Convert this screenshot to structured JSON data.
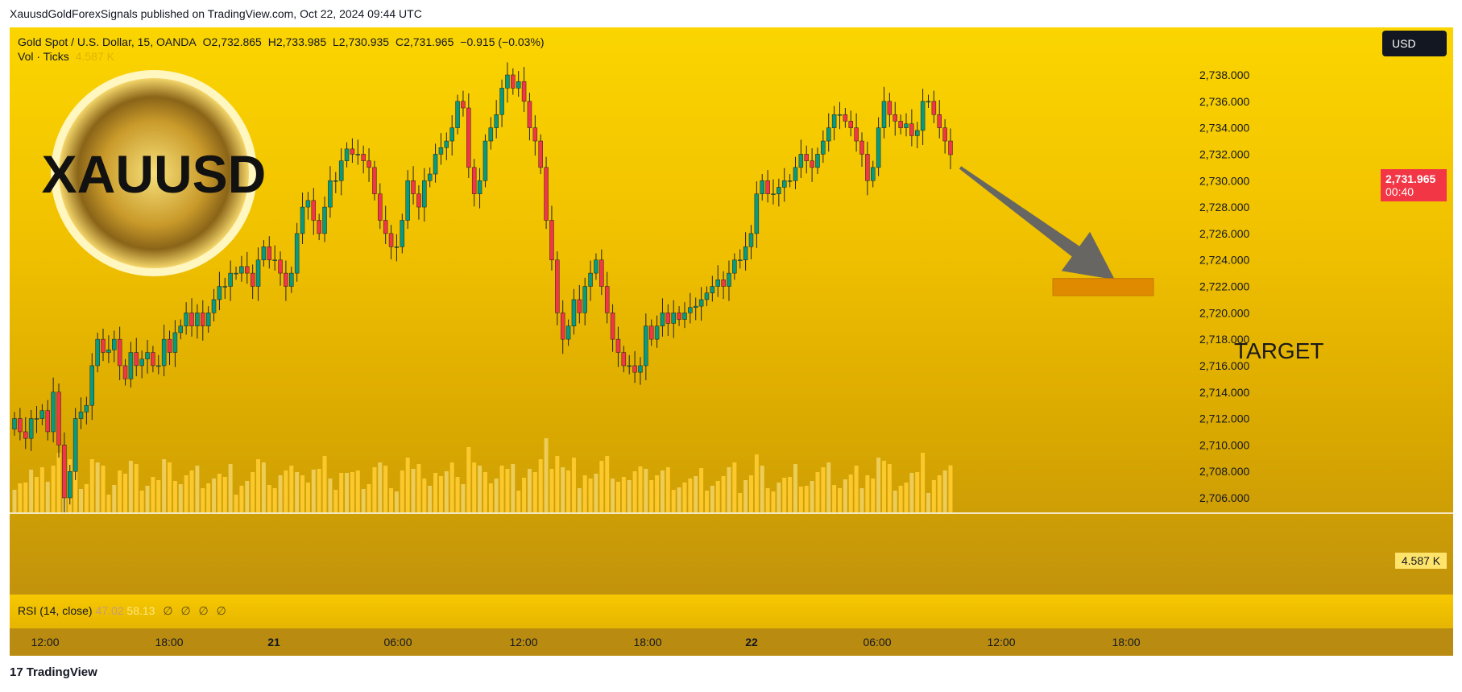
{
  "publisher_line": "XauusdGoldForexSignals published on TradingView.com, Oct 22, 2024 09:44 UTC",
  "legend": {
    "symbol": "Gold Spot / U.S. Dollar, 15, OANDA",
    "open": "O2,732.865",
    "high": "H2,733.985",
    "low": "L2,730.935",
    "close": "C2,731.965",
    "change": "−0.915 (−0.03%)",
    "vol_label": "Vol · Ticks",
    "vol_value": "4.587 K"
  },
  "currency_button": "USD",
  "logo_text": "XAUUSD",
  "last_price": {
    "price": "2,731.965",
    "countdown": "00:40",
    "color": "#f23645"
  },
  "volume_tag": "4.587 K",
  "target_label": "TARGET",
  "rsi": {
    "label": "RSI (14, close)",
    "v1": "47.02",
    "v2": "58.13",
    "extra": [
      "∅",
      "∅",
      "∅",
      "∅"
    ]
  },
  "branding": "TradingView",
  "colors": {
    "up": "#089981",
    "down": "#f23645",
    "volume": "#ffcc33",
    "arrow": "#5b5e6a",
    "target": "#e08a00"
  },
  "chart_data": {
    "type": "candlestick",
    "symbol": "XAUUSD",
    "timeframe": "15",
    "y_axis": {
      "min": 2705,
      "max": 2740,
      "ticks": [
        "2,706.000",
        "2,708.000",
        "2,710.000",
        "2,712.000",
        "2,714.000",
        "2,716.000",
        "2,718.000",
        "2,720.000",
        "2,722.000",
        "2,724.000",
        "2,726.000",
        "2,728.000",
        "2,730.000",
        "2,732.000",
        "2,734.000",
        "2,736.000",
        "2,738.000"
      ]
    },
    "x_axis": {
      "ticks": [
        "12:00",
        "18:00",
        "21",
        "06:00",
        "12:00",
        "18:00",
        "22",
        "06:00",
        "12:00",
        "18:00"
      ]
    },
    "close_series": [
      2712,
      2711,
      2710.5,
      2712,
      2712,
      2712.6,
      2711,
      2714,
      2710,
      2706,
      2708,
      2712,
      2712.5,
      2713,
      2716,
      2718,
      2717,
      2717.2,
      2718,
      2716,
      2715,
      2717,
      2716,
      2716.5,
      2717,
      2716,
      2716,
      2718,
      2717,
      2718.5,
      2719,
      2720,
      2719,
      2720,
      2719,
      2720,
      2721,
      2722,
      2722,
      2723,
      2723,
      2723.5,
      2723,
      2722,
      2724,
      2725,
      2724,
      2724,
      2723,
      2722,
      2723,
      2726,
      2728,
      2728.5,
      2727,
      2726,
      2728,
      2730,
      2730,
      2731.5,
      2732.4,
      2732,
      2732,
      2731.5,
      2731,
      2729,
      2727,
      2726,
      2725,
      2725,
      2727,
      2730,
      2729,
      2728,
      2730,
      2730.5,
      2732,
      2732.5,
      2733,
      2734,
      2736,
      2735.5,
      2731,
      2729,
      2730,
      2733,
      2734,
      2735,
      2737,
      2738,
      2737,
      2737.5,
      2736,
      2734,
      2733,
      2731,
      2727,
      2724,
      2720,
      2718,
      2719,
      2721,
      2720,
      2722,
      2723,
      2724,
      2722,
      2720,
      2718,
      2717,
      2716,
      2716,
      2715.5,
      2716,
      2719,
      2718,
      2719,
      2720,
      2719.2,
      2720,
      2719.5,
      2720,
      2720.4,
      2720.5,
      2721,
      2721.5,
      2722,
      2722.5,
      2722,
      2723,
      2724,
      2724,
      2725,
      2726,
      2729,
      2730,
      2729,
      2729,
      2729.5,
      2730,
      2730,
      2731,
      2732,
      2731.5,
      2731,
      2732,
      2733,
      2734,
      2735,
      2735,
      2734.5,
      2734,
      2733,
      2732,
      2730,
      2731,
      2734,
      2736,
      2735,
      2734.5,
      2734,
      2734.3,
      2733.4,
      2733.8,
      2736,
      2736,
      2735,
      2734,
      2733,
      2731.965
    ],
    "last_close": 2731.965,
    "last_volume": "4.587 K",
    "annotations": [
      {
        "type": "arrow",
        "from_x": 1180,
        "from_y": 2731,
        "to_x": 1372,
        "to_y": 2722.5
      },
      {
        "type": "target_zone",
        "x_from": 1295,
        "x_to": 1420,
        "y_from": 2721.3,
        "y_to": 2722.6,
        "label": "TARGET"
      }
    ]
  }
}
